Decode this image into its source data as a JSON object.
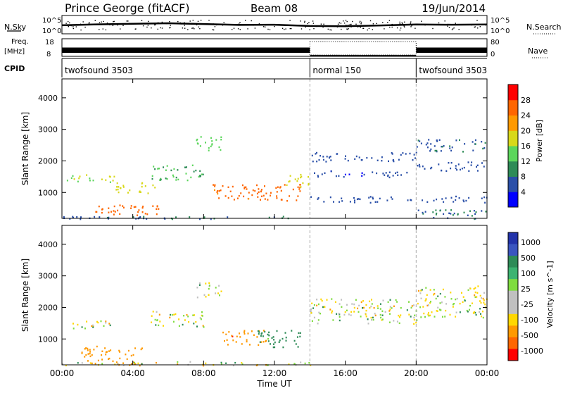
{
  "header": {
    "station": "Prince George (fitACF)",
    "beam": "Beam 08",
    "date": "19/Jun/2014"
  },
  "noise_panel": {
    "left_label": "N.Sky",
    "right_label": "N.Search",
    "y_ticks": [
      "10^5",
      "10^0"
    ]
  },
  "freq_panel": {
    "left_label_1": "Freq.",
    "left_label_2": "[MHz]",
    "right_label": "Nave",
    "left_ticks": [
      "18",
      "8"
    ],
    "right_ticks": [
      "80",
      "0"
    ]
  },
  "cpid_panel": {
    "label": "CPID",
    "segments": [
      {
        "name": "twofsound 3503",
        "start_hour": 0,
        "end_hour": 14
      },
      {
        "name": "normal 150",
        "start_hour": 14,
        "end_hour": 20
      },
      {
        "name": "twofsound 3503",
        "start_hour": 20,
        "end_hour": 24
      }
    ]
  },
  "x_axis": {
    "label": "Time UT",
    "ticks": [
      "00:00",
      "04:00",
      "08:00",
      "12:00",
      "16:00",
      "20:00",
      "00:00"
    ],
    "hour_values": [
      0,
      4,
      8,
      12,
      16,
      20,
      24
    ]
  },
  "power_panel": {
    "ylabel": "Slant Range [km]",
    "y_ticks": [
      1000,
      2000,
      3000,
      4000
    ],
    "colorbar_label": "Power [dB]",
    "colorbar_ticks": [
      "4",
      "8",
      "12",
      "16",
      "20",
      "24",
      "28"
    ],
    "colors": [
      "#0000ff",
      "#2a4fa8",
      "#2e8b57",
      "#5cd65c",
      "#d8d81a",
      "#ff9900",
      "#ff6600",
      "#ff0000"
    ]
  },
  "velocity_panel": {
    "ylabel": "Slant Range [km]",
    "y_ticks": [
      1000,
      2000,
      3000,
      4000
    ],
    "colorbar_label": "Velocity [m s^-1]",
    "colorbar_ticks": [
      "1000",
      "500",
      "100",
      "25",
      "-25",
      "-100",
      "-500",
      "-1000"
    ],
    "colors": [
      "#2233aa",
      "#3a55c0",
      "#2e8b57",
      "#3cb371",
      "#7fdc3f",
      "#c0c0c0",
      "#c0c0c0",
      "#ffd700",
      "#ff9900",
      "#ff6600",
      "#ff0000"
    ]
  },
  "chart_data": [
    {
      "type": "line",
      "panel": "noise",
      "x_unit": "hours UT",
      "ylim": [
        1,
        100000
      ],
      "y_scale": "log",
      "series": [
        {
          "values": [
            [
              0,
              200
            ],
            [
              2,
              400
            ],
            [
              4,
              600
            ],
            [
              6,
              900
            ],
            [
              8,
              500
            ],
            [
              10,
              250
            ],
            [
              12,
              300
            ],
            [
              14,
              120
            ],
            [
              16,
              100
            ],
            [
              18,
              180
            ],
            [
              20,
              350
            ],
            [
              22,
              300
            ],
            [
              24,
              350
            ]
          ]
        }
      ]
    },
    {
      "type": "bar",
      "panel": "frequency",
      "segments": [
        {
          "start_hour": 0,
          "end_hour": 14,
          "freq_mhz": [
            10,
            13
          ]
        },
        {
          "start_hour": 14,
          "end_hour": 20,
          "freq_mhz": [
            8.5,
            8.5
          ],
          "nave": 80
        },
        {
          "start_hour": 20,
          "end_hour": 24,
          "freq_mhz": [
            10,
            13
          ]
        }
      ],
      "ylim": [
        8,
        18
      ]
    },
    {
      "type": "heatmap",
      "panel": "power",
      "xlim": [
        0,
        24
      ],
      "ylim": [
        180,
        4600
      ],
      "zlim": [
        0,
        30
      ],
      "bands": [
        {
          "t0": 0.0,
          "t1": 6.0,
          "r0": 180,
          "r1": 260,
          "z": 6
        },
        {
          "t0": 0.0,
          "t1": 14.0,
          "r0": 180,
          "r1": 260,
          "z": 8
        },
        {
          "t0": 1.0,
          "t1": 5.5,
          "r0": 300,
          "r1": 620,
          "z": 26
        },
        {
          "t0": 0.2,
          "t1": 3.0,
          "r0": 1350,
          "r1": 1600,
          "z": 16
        },
        {
          "t0": 3.0,
          "t1": 5.5,
          "r0": 1000,
          "r1": 1350,
          "z": 18
        },
        {
          "t0": 5.0,
          "t1": 8.0,
          "r0": 1400,
          "r1": 1900,
          "z": 12
        },
        {
          "t0": 7.5,
          "t1": 9.0,
          "r0": 2300,
          "r1": 2800,
          "z": 14
        },
        {
          "t0": 8.5,
          "t1": 11.5,
          "r0": 800,
          "r1": 1300,
          "z": 25
        },
        {
          "t0": 11.0,
          "t1": 13.5,
          "r0": 750,
          "r1": 1300,
          "z": 26
        },
        {
          "t0": 12.5,
          "t1": 14.0,
          "r0": 1200,
          "r1": 1600,
          "z": 18
        },
        {
          "t0": 14.0,
          "t1": 20.0,
          "r0": 2000,
          "r1": 2300,
          "z": 6
        },
        {
          "t0": 14.0,
          "t1": 20.0,
          "r0": 1500,
          "r1": 1700,
          "z": 5
        },
        {
          "t0": 14.0,
          "t1": 24.0,
          "r0": 700,
          "r1": 900,
          "z": 6
        },
        {
          "t0": 20.0,
          "t1": 24.0,
          "r0": 2300,
          "r1": 2700,
          "z": 7
        },
        {
          "t0": 20.0,
          "t1": 24.0,
          "r0": 1700,
          "r1": 2000,
          "z": 6
        },
        {
          "t0": 20.0,
          "t1": 24.0,
          "r0": 180,
          "r1": 500,
          "z": 8
        }
      ]
    },
    {
      "type": "heatmap",
      "panel": "velocity",
      "xlim": [
        0,
        24
      ],
      "ylim": [
        180,
        4600
      ],
      "zlim": [
        -1000,
        1000
      ],
      "bands": [
        {
          "t0": 1.0,
          "t1": 4.5,
          "r0": 180,
          "r1": 800,
          "z": -300
        },
        {
          "t0": 0.0,
          "t1": 14.0,
          "r0": 180,
          "r1": 300,
          "z": 0
        },
        {
          "t0": 0.2,
          "t1": 3.0,
          "r0": 1350,
          "r1": 1600,
          "z": 0
        },
        {
          "t0": 5.0,
          "t1": 8.0,
          "r0": 1400,
          "r1": 1900,
          "z": 0
        },
        {
          "t0": 7.5,
          "t1": 9.0,
          "r0": 2300,
          "r1": 2800,
          "z": 0
        },
        {
          "t0": 9.0,
          "t1": 11.5,
          "r0": 800,
          "r1": 1300,
          "z": -400
        },
        {
          "t0": 11.0,
          "t1": 13.5,
          "r0": 700,
          "r1": 1300,
          "z": 200
        },
        {
          "t0": 14.0,
          "t1": 20.0,
          "r0": 1500,
          "r1": 2300,
          "z": 0
        },
        {
          "t0": 20.0,
          "t1": 24.0,
          "r0": 1700,
          "r1": 2700,
          "z": 0
        }
      ]
    }
  ]
}
